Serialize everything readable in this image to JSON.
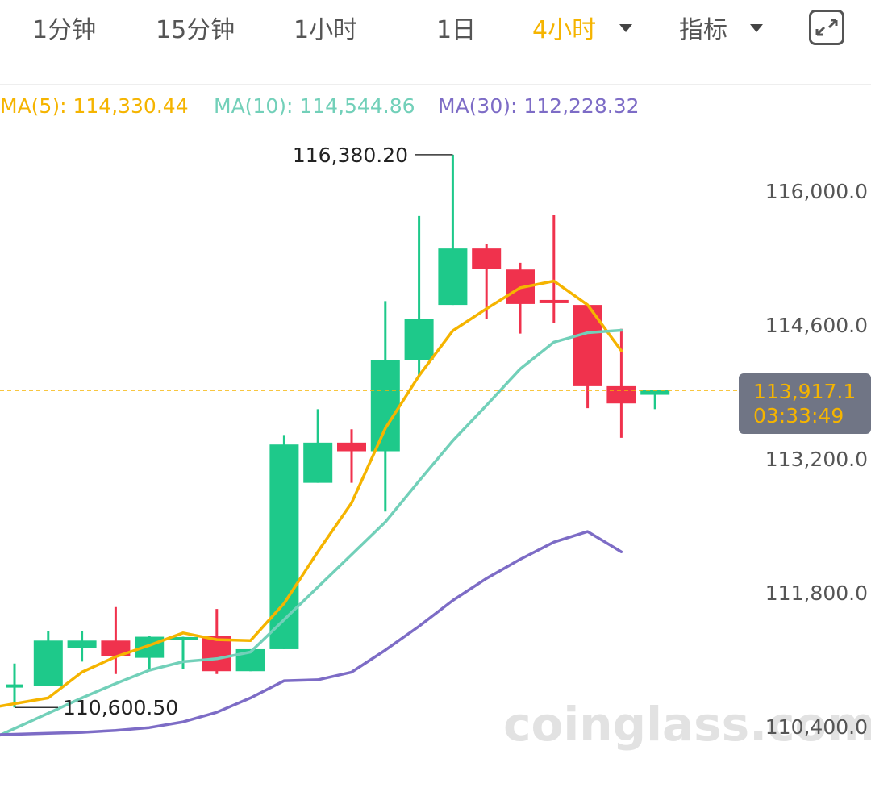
{
  "tabs": [
    {
      "label": "1分钟",
      "active": false
    },
    {
      "label": "15分钟",
      "active": false
    },
    {
      "label": "1小时",
      "active": false
    },
    {
      "label": "1日",
      "active": false
    },
    {
      "label": "4小时",
      "active": true
    },
    {
      "label": "指标",
      "active": false
    }
  ],
  "icons": {
    "caret": "caret-down-icon",
    "expand": "fullscreen-expand-icon"
  },
  "legend": {
    "ma5": "MA(5): 114,330.44",
    "ma10": "MA(10): 114,544.86",
    "ma30": "MA(30): 112,228.32"
  },
  "colors": {
    "accent": "#f5b400",
    "up": "#1ec98a",
    "down": "#f0324d",
    "ma5": "#f5b400",
    "ma10": "#72d0b9",
    "ma30": "#7d6cc6",
    "tag_bg": "#707585"
  },
  "price_tag": {
    "price": "113,917.1",
    "countdown": "03:33:49"
  },
  "watermark": "coinglass.com",
  "chart_data": {
    "type": "candlestick",
    "interval": "4小时",
    "y_axis_ticks": [
      116000.0,
      114600.0,
      113200.0,
      111800.0,
      110400.0
    ],
    "y_axis_tick_labels": [
      "116,000.0",
      "114,600.0",
      "113,200.0",
      "111,800.0",
      "110,400.0"
    ],
    "ylim": [
      110230,
      117020
    ],
    "current_price": 113917.1,
    "annotations": {
      "high": {
        "value": 116380.2,
        "label": "116,380.20"
      },
      "low": {
        "value": 110600.5,
        "label": "110,600.50"
      }
    },
    "candles": [
      {
        "o": 110820,
        "h": 111060,
        "l": 110600.5,
        "c": 110830
      },
      {
        "o": 110830,
        "h": 111400,
        "l": 110830,
        "c": 111300
      },
      {
        "o": 111220,
        "h": 111400,
        "l": 111080,
        "c": 111300
      },
      {
        "o": 111300,
        "h": 111650,
        "l": 110950,
        "c": 111140
      },
      {
        "o": 111120,
        "h": 111350,
        "l": 110980,
        "c": 111340
      },
      {
        "o": 111320,
        "h": 111340,
        "l": 111000,
        "c": 111320
      },
      {
        "o": 111350,
        "h": 111630,
        "l": 110950,
        "c": 110980
      },
      {
        "o": 110980,
        "h": 111210,
        "l": 110980,
        "c": 111210
      },
      {
        "o": 111210,
        "h": 113450,
        "l": 111210,
        "c": 113350
      },
      {
        "o": 112950,
        "h": 113720,
        "l": 112950,
        "c": 113370
      },
      {
        "o": 113370,
        "h": 113510,
        "l": 112950,
        "c": 113280
      },
      {
        "o": 113280,
        "h": 114850,
        "l": 112650,
        "c": 114230
      },
      {
        "o": 114230,
        "h": 115740,
        "l": 114050,
        "c": 114660
      },
      {
        "o": 114810,
        "h": 116380.2,
        "l": 114810,
        "c": 115400
      },
      {
        "o": 115400,
        "h": 115450,
        "l": 114660,
        "c": 115190
      },
      {
        "o": 115180,
        "h": 115250,
        "l": 114510,
        "c": 114820
      },
      {
        "o": 114850,
        "h": 115750,
        "l": 114620,
        "c": 114840
      },
      {
        "o": 114810,
        "h": 114810,
        "l": 113730,
        "c": 113960
      },
      {
        "o": 113960,
        "h": 114560,
        "l": 113420,
        "c": 113780
      },
      {
        "o": 113870,
        "h": 113920,
        "l": 113720,
        "c": 113917.1
      }
    ],
    "series": [
      {
        "name": "MA(5)",
        "values": [
          110640,
          110700,
          110970,
          111130,
          111250,
          111380,
          111310,
          111300,
          111690,
          112230,
          112740,
          113520,
          114070,
          114540,
          114770,
          114990,
          115060,
          114810,
          114330.44
        ]
      },
      {
        "name": "MA(10)",
        "values": [
          110380,
          110540,
          110700,
          110850,
          110990,
          111080,
          111110,
          111180,
          111520,
          111860,
          112200,
          112540,
          112970,
          113390,
          113760,
          114140,
          114420,
          114520,
          114544.86
        ]
      },
      {
        "name": "MA(30)",
        "values": [
          110320,
          110330,
          110340,
          110360,
          110390,
          110450,
          110550,
          110700,
          110880,
          110890,
          110970,
          111200,
          111450,
          111720,
          111950,
          112150,
          112330,
          112440,
          112228.32
        ]
      }
    ]
  }
}
